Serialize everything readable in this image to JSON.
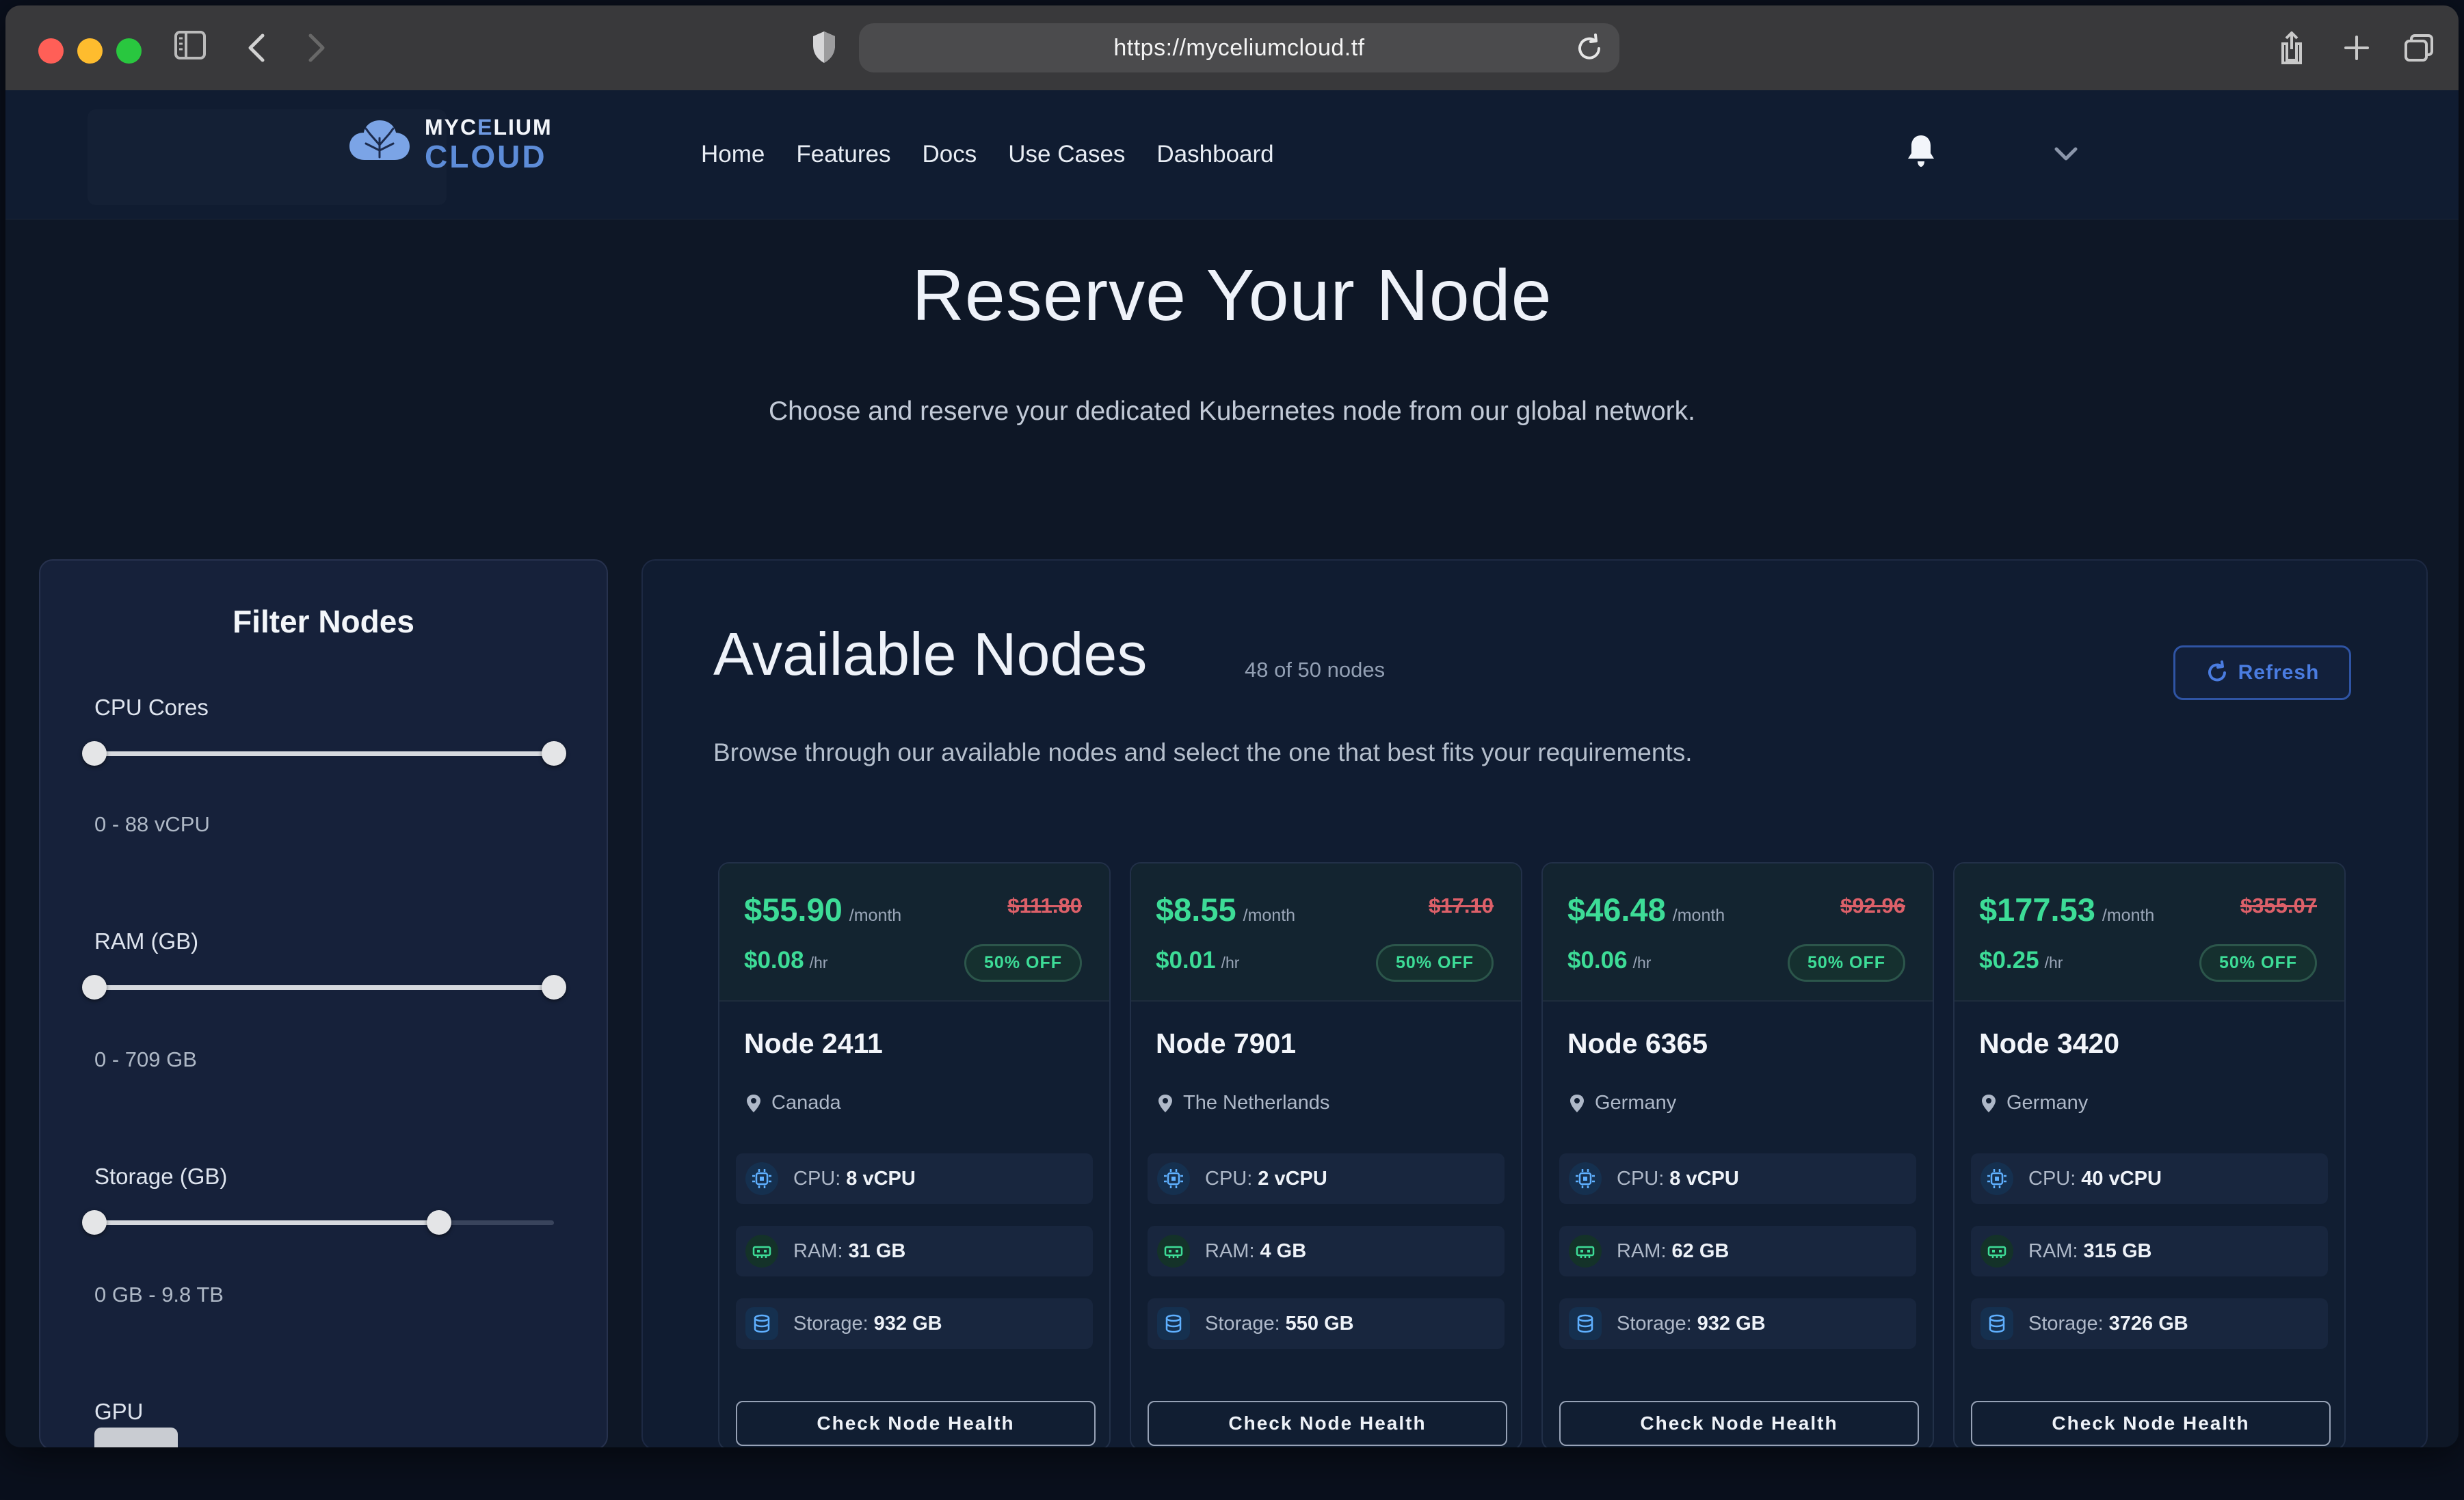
{
  "browser": {
    "url": "https://myceliumcloud.tf"
  },
  "nav": {
    "brand": {
      "pre": "MYC",
      "mid": "E",
      "post": "LIUM",
      "line2": "CLOUD"
    },
    "links": [
      "Home",
      "Features",
      "Docs",
      "Use Cases",
      "Dashboard"
    ]
  },
  "hero": {
    "title": "Reserve Your Node",
    "subtitle": "Choose and reserve your dedicated Kubernetes node from our global network."
  },
  "filters": {
    "title": "Filter Nodes",
    "sections": [
      {
        "label": "CPU Cores",
        "range": "0 - 88 vCPU",
        "start_pct": 0,
        "end_pct": 100
      },
      {
        "label": "RAM (GB)",
        "range": "0 - 709 GB",
        "start_pct": 0,
        "end_pct": 100
      },
      {
        "label": "Storage (GB)",
        "range": "0 GB - 9.8 TB",
        "start_pct": 0,
        "end_pct": 75
      },
      {
        "label": "GPU"
      }
    ]
  },
  "nodes": {
    "title": "Available Nodes",
    "count_label": "48 of 50 nodes",
    "description": "Browse through our available nodes and select the one that best fits your requirements.",
    "refresh_label": "Refresh",
    "cards": [
      {
        "monthly": "$55.90",
        "per_month": "/month",
        "hourly": "$0.08",
        "per_hour": "/hr",
        "original": "$111.80",
        "discount": "50% OFF",
        "name": "Node 2411",
        "location": "Canada",
        "cpu_label": "CPU:",
        "cpu": "8 vCPU",
        "ram_label": "RAM:",
        "ram": "31 GB",
        "storage_label": "Storage:",
        "storage": "932 GB",
        "health_label": "Check Node Health"
      },
      {
        "monthly": "$8.55",
        "per_month": "/month",
        "hourly": "$0.01",
        "per_hour": "/hr",
        "original": "$17.10",
        "discount": "50% OFF",
        "name": "Node 7901",
        "location": "The Netherlands",
        "cpu_label": "CPU:",
        "cpu": "2 vCPU",
        "ram_label": "RAM:",
        "ram": "4 GB",
        "storage_label": "Storage:",
        "storage": "550 GB",
        "health_label": "Check Node Health"
      },
      {
        "monthly": "$46.48",
        "per_month": "/month",
        "hourly": "$0.06",
        "per_hour": "/hr",
        "original": "$92.96",
        "discount": "50% OFF",
        "name": "Node 6365",
        "location": "Germany",
        "cpu_label": "CPU:",
        "cpu": "8 vCPU",
        "ram_label": "RAM:",
        "ram": "62 GB",
        "storage_label": "Storage:",
        "storage": "932 GB",
        "health_label": "Check Node Health"
      },
      {
        "monthly": "$177.53",
        "per_month": "/month",
        "hourly": "$0.25",
        "per_hour": "/hr",
        "original": "$355.07",
        "discount": "50% OFF",
        "name": "Node 3420",
        "location": "Germany",
        "cpu_label": "CPU:",
        "cpu": "40 vCPU",
        "ram_label": "RAM:",
        "ram": "315 GB",
        "storage_label": "Storage:",
        "storage": "3726 GB",
        "health_label": "Check Node Health"
      }
    ]
  },
  "colors": {
    "accent_green": "#3ddc97",
    "accent_red": "#dd6069",
    "accent_blue": "#4a7ce0",
    "page_bg": "#0e1726"
  }
}
